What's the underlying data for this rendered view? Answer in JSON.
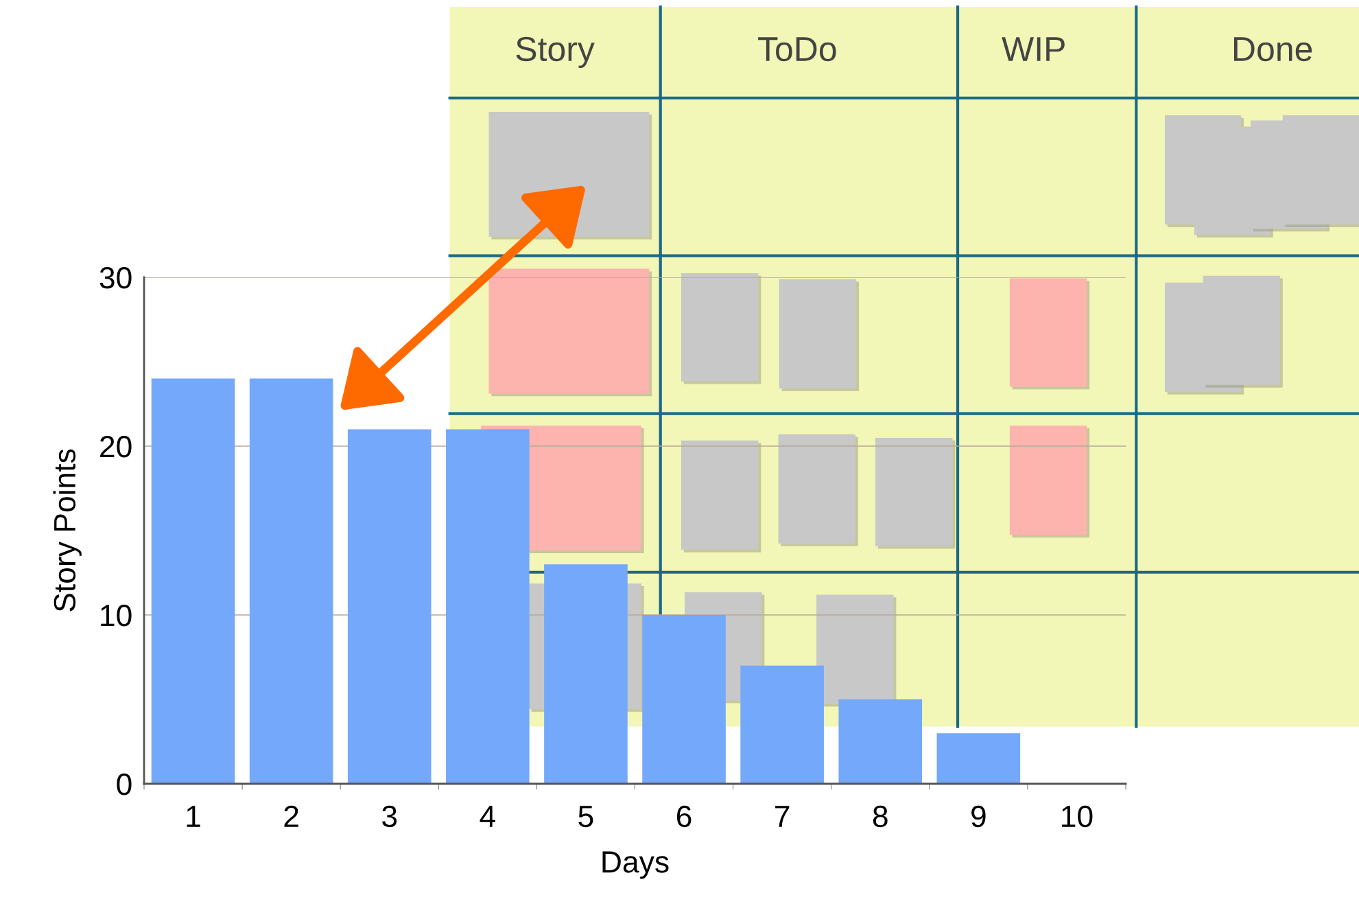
{
  "chart_data": {
    "type": "bar",
    "categories": [
      "1",
      "2",
      "3",
      "4",
      "5",
      "6",
      "7",
      "8",
      "9",
      "10"
    ],
    "values": [
      24,
      24,
      21,
      21,
      13,
      10,
      7,
      5,
      3,
      0
    ],
    "color": "#74a8fb",
    "xlabel": "Days",
    "ylabel": "Story Points",
    "ylim": [
      0,
      30
    ],
    "yticks": [
      0,
      10,
      20,
      30
    ],
    "grid": "y",
    "annotations": [
      "Story",
      "ToDo",
      "WIP",
      "Done"
    ]
  }
}
